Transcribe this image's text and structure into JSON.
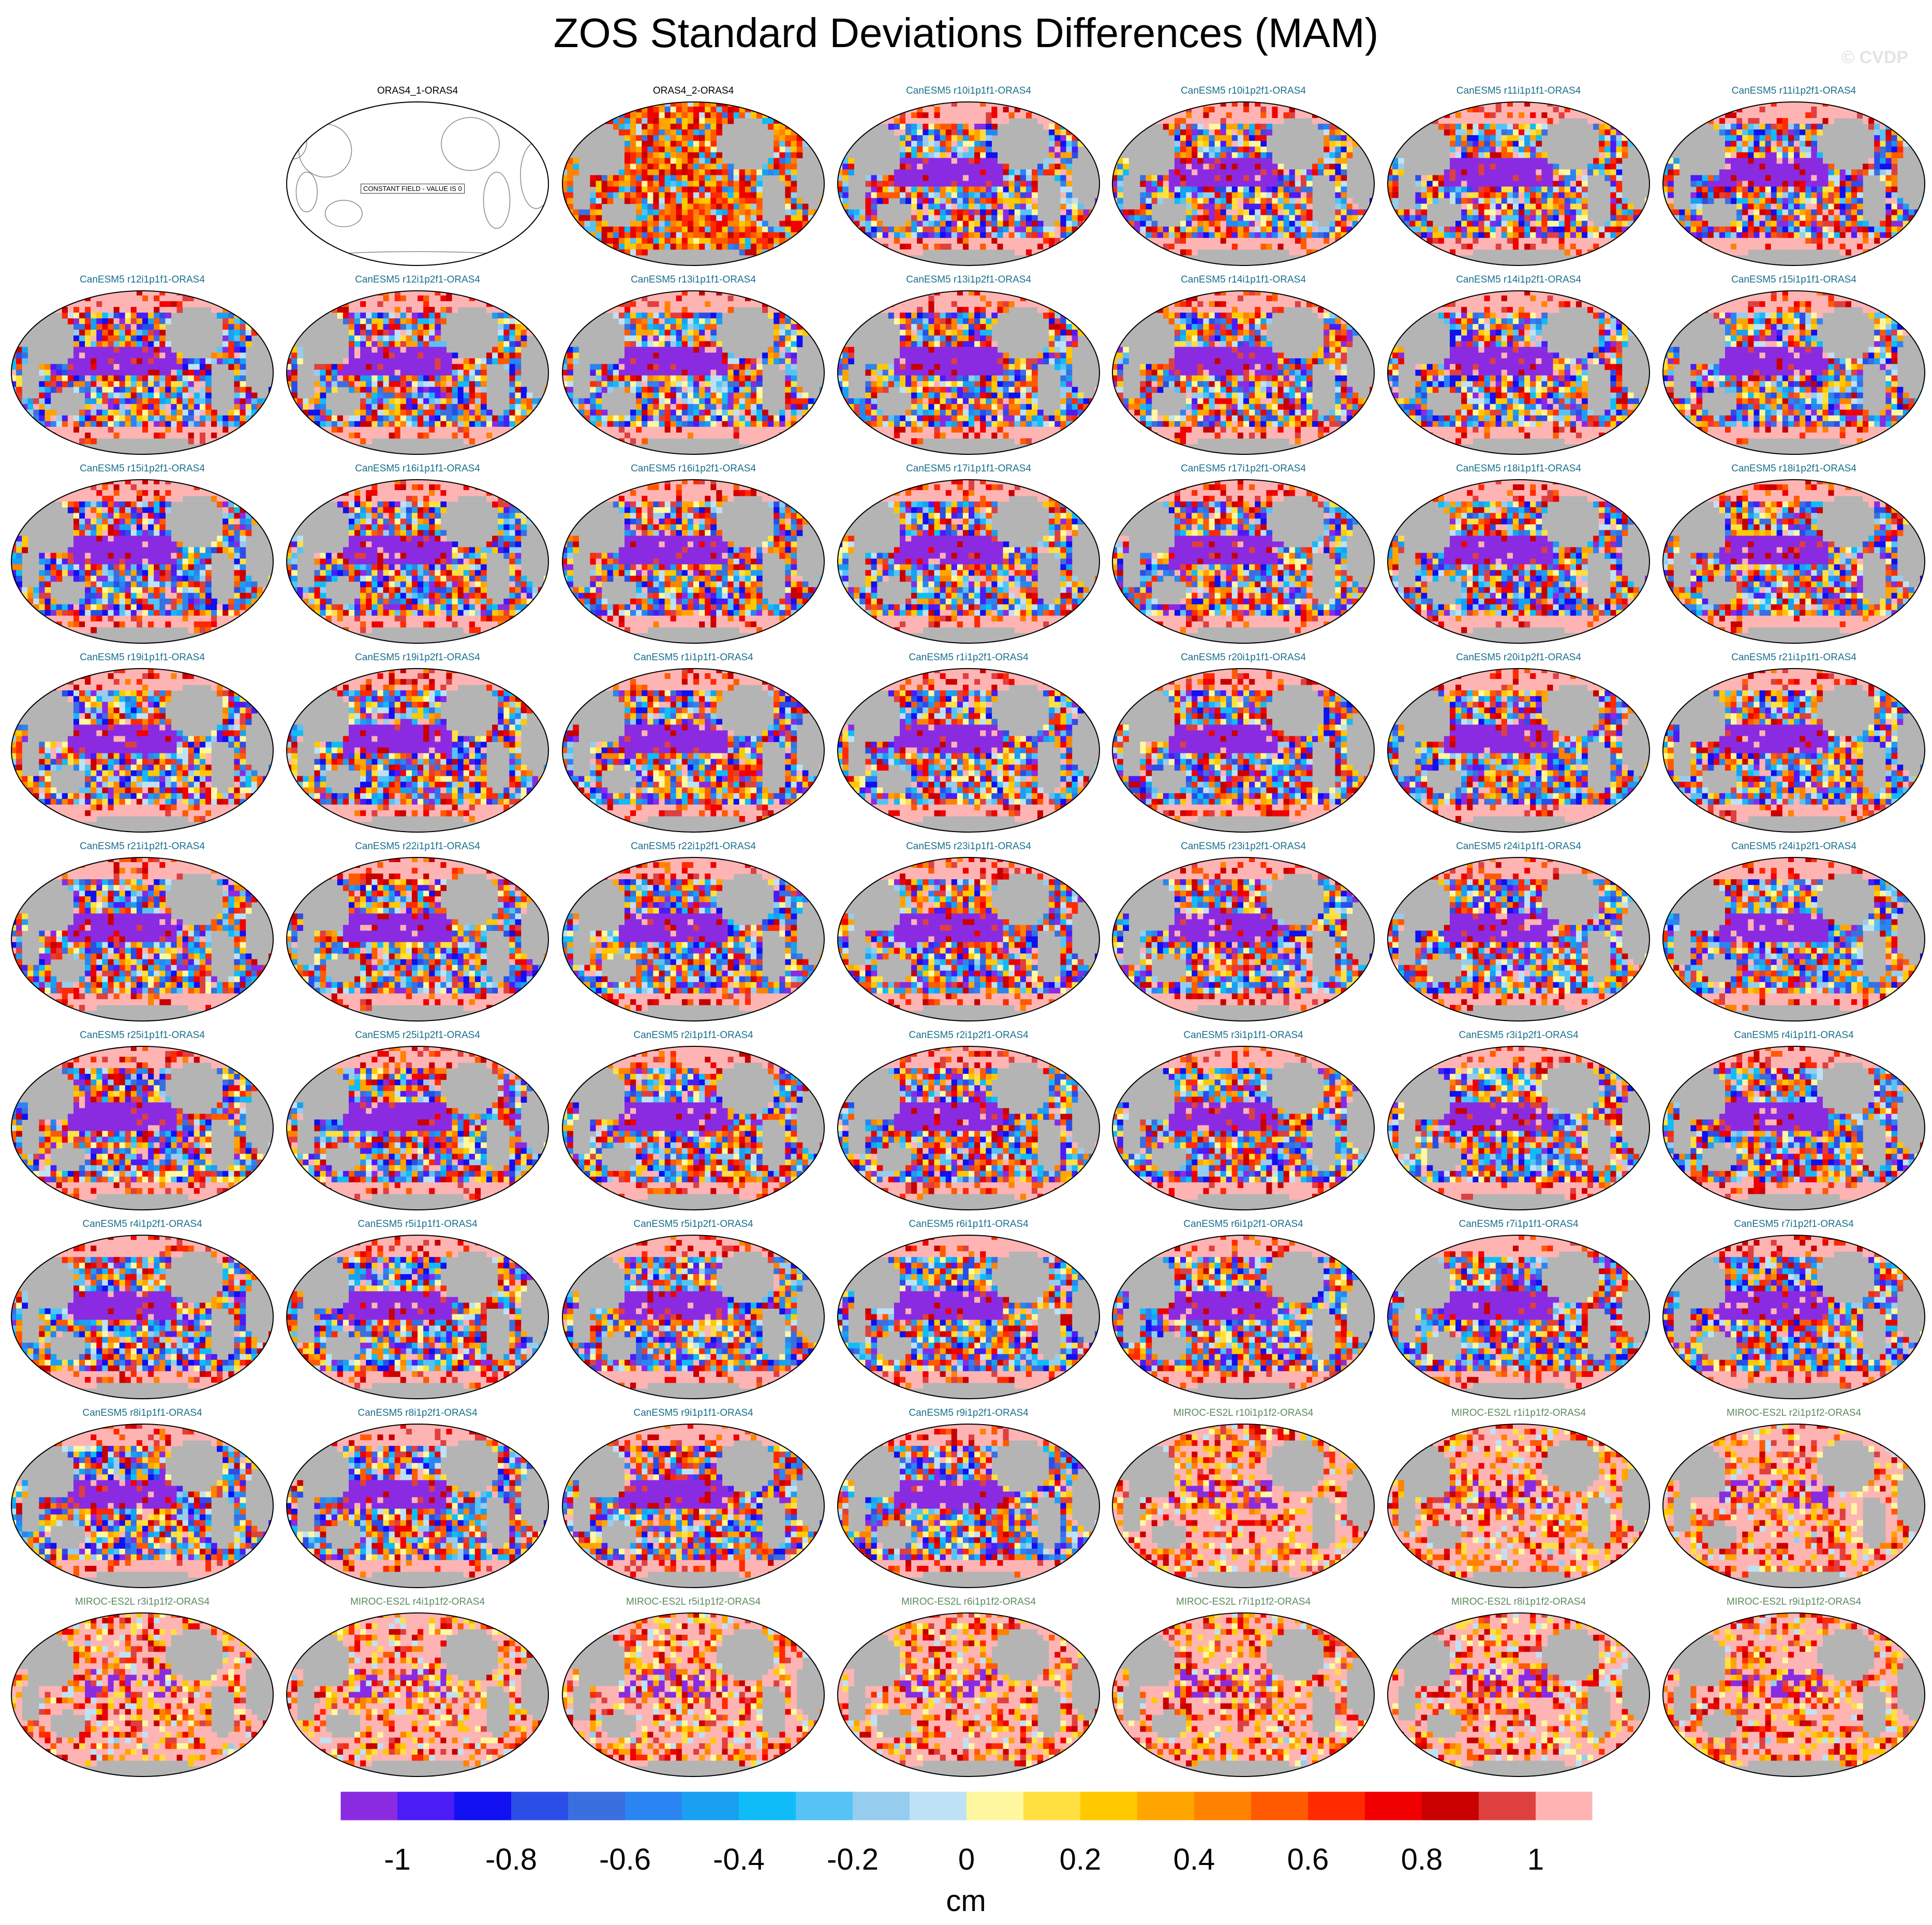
{
  "title": "ZOS Standard Deviations Differences (MAM)",
  "watermark": "© CVDP",
  "constant_field_note": "CONSTANT FIELD - VALUE IS 0",
  "colors": {
    "land": "#b4b4b4",
    "canesm_label": "#1a6f8c",
    "miroc_label": "#5c8a5c",
    "obs_label": "#000000",
    "palette": [
      "#8a2be2",
      "#4b1cf5",
      "#1010f0",
      "#2b4fe6",
      "#3a6fe0",
      "#2a85f2",
      "#1aa0f0",
      "#10bcf8",
      "#55c3f5",
      "#96cdef",
      "#bee2f5",
      "#fff8a0",
      "#ffe040",
      "#ffc800",
      "#ffa500",
      "#ff8200",
      "#ff5a00",
      "#ff2a00",
      "#f00000",
      "#c80000",
      "#de4040",
      "#ffb4b4"
    ]
  },
  "chart_data": {
    "type": "heatmap",
    "projection": "robinson",
    "unit": "cm",
    "colorbar_ticks": [
      "-1",
      "-0.8",
      "-0.6",
      "-0.4",
      "-0.2",
      "0",
      "0.2",
      "0.4",
      "0.6",
      "0.8",
      "1"
    ],
    "colorbar_levels": [
      -1.1,
      -1,
      -0.9,
      -0.8,
      -0.7,
      -0.6,
      -0.5,
      -0.4,
      -0.3,
      -0.2,
      -0.1,
      0,
      0.1,
      0.2,
      0.3,
      0.4,
      0.5,
      0.6,
      0.7,
      0.8,
      0.9,
      1,
      1.1
    ],
    "panels": [
      {
        "label": "ORAS4_1-ORAS4",
        "group": "obs",
        "constant": true
      },
      {
        "label": "ORAS4_2-ORAS4",
        "group": "obs"
      },
      {
        "label": "CanESM5 r10i1p1f1-ORAS4",
        "group": "canesm"
      },
      {
        "label": "CanESM5 r10i1p2f1-ORAS4",
        "group": "canesm"
      },
      {
        "label": "CanESM5 r11i1p1f1-ORAS4",
        "group": "canesm"
      },
      {
        "label": "CanESM5 r11i1p2f1-ORAS4",
        "group": "canesm"
      },
      {
        "label": "CanESM5 r12i1p1f1-ORAS4",
        "group": "canesm"
      },
      {
        "label": "CanESM5 r12i1p2f1-ORAS4",
        "group": "canesm"
      },
      {
        "label": "CanESM5 r13i1p1f1-ORAS4",
        "group": "canesm"
      },
      {
        "label": "CanESM5 r13i1p2f1-ORAS4",
        "group": "canesm"
      },
      {
        "label": "CanESM5 r14i1p1f1-ORAS4",
        "group": "canesm"
      },
      {
        "label": "CanESM5 r14i1p2f1-ORAS4",
        "group": "canesm"
      },
      {
        "label": "CanESM5 r15i1p1f1-ORAS4",
        "group": "canesm"
      },
      {
        "label": "CanESM5 r15i1p2f1-ORAS4",
        "group": "canesm"
      },
      {
        "label": "CanESM5 r16i1p1f1-ORAS4",
        "group": "canesm"
      },
      {
        "label": "CanESM5 r16i1p2f1-ORAS4",
        "group": "canesm"
      },
      {
        "label": "CanESM5 r17i1p1f1-ORAS4",
        "group": "canesm"
      },
      {
        "label": "CanESM5 r17i1p2f1-ORAS4",
        "group": "canesm"
      },
      {
        "label": "CanESM5 r18i1p1f1-ORAS4",
        "group": "canesm"
      },
      {
        "label": "CanESM5 r18i1p2f1-ORAS4",
        "group": "canesm"
      },
      {
        "label": "CanESM5 r19i1p1f1-ORAS4",
        "group": "canesm"
      },
      {
        "label": "CanESM5 r19i1p2f1-ORAS4",
        "group": "canesm"
      },
      {
        "label": "CanESM5 r1i1p1f1-ORAS4",
        "group": "canesm"
      },
      {
        "label": "CanESM5 r1i1p2f1-ORAS4",
        "group": "canesm"
      },
      {
        "label": "CanESM5 r20i1p1f1-ORAS4",
        "group": "canesm"
      },
      {
        "label": "CanESM5 r20i1p2f1-ORAS4",
        "group": "canesm"
      },
      {
        "label": "CanESM5 r21i1p1f1-ORAS4",
        "group": "canesm"
      },
      {
        "label": "CanESM5 r21i1p2f1-ORAS4",
        "group": "canesm"
      },
      {
        "label": "CanESM5 r22i1p1f1-ORAS4",
        "group": "canesm"
      },
      {
        "label": "CanESM5 r22i1p2f1-ORAS4",
        "group": "canesm"
      },
      {
        "label": "CanESM5 r23i1p1f1-ORAS4",
        "group": "canesm"
      },
      {
        "label": "CanESM5 r23i1p2f1-ORAS4",
        "group": "canesm"
      },
      {
        "label": "CanESM5 r24i1p1f1-ORAS4",
        "group": "canesm"
      },
      {
        "label": "CanESM5 r24i1p2f1-ORAS4",
        "group": "canesm"
      },
      {
        "label": "CanESM5 r25i1p1f1-ORAS4",
        "group": "canesm"
      },
      {
        "label": "CanESM5 r25i1p2f1-ORAS4",
        "group": "canesm"
      },
      {
        "label": "CanESM5 r2i1p1f1-ORAS4",
        "group": "canesm"
      },
      {
        "label": "CanESM5 r2i1p2f1-ORAS4",
        "group": "canesm"
      },
      {
        "label": "CanESM5 r3i1p1f1-ORAS4",
        "group": "canesm"
      },
      {
        "label": "CanESM5 r3i1p2f1-ORAS4",
        "group": "canesm"
      },
      {
        "label": "CanESM5 r4i1p1f1-ORAS4",
        "group": "canesm"
      },
      {
        "label": "CanESM5 r4i1p2f1-ORAS4",
        "group": "canesm"
      },
      {
        "label": "CanESM5 r5i1p1f1-ORAS4",
        "group": "canesm"
      },
      {
        "label": "CanESM5 r5i1p2f1-ORAS4",
        "group": "canesm"
      },
      {
        "label": "CanESM5 r6i1p1f1-ORAS4",
        "group": "canesm"
      },
      {
        "label": "CanESM5 r6i1p2f1-ORAS4",
        "group": "canesm"
      },
      {
        "label": "CanESM5 r7i1p1f1-ORAS4",
        "group": "canesm"
      },
      {
        "label": "CanESM5 r7i1p2f1-ORAS4",
        "group": "canesm"
      },
      {
        "label": "CanESM5 r8i1p1f1-ORAS4",
        "group": "canesm"
      },
      {
        "label": "CanESM5 r8i1p2f1-ORAS4",
        "group": "canesm"
      },
      {
        "label": "CanESM5 r9i1p1f1-ORAS4",
        "group": "canesm"
      },
      {
        "label": "CanESM5 r9i1p2f1-ORAS4",
        "group": "canesm"
      },
      {
        "label": "MIROC-ES2L r10i1p1f2-ORAS4",
        "group": "miroc"
      },
      {
        "label": "MIROC-ES2L r1i1p1f2-ORAS4",
        "group": "miroc"
      },
      {
        "label": "MIROC-ES2L r2i1p1f2-ORAS4",
        "group": "miroc"
      },
      {
        "label": "MIROC-ES2L r3i1p1f2-ORAS4",
        "group": "miroc"
      },
      {
        "label": "MIROC-ES2L r4i1p1f2-ORAS4",
        "group": "miroc"
      },
      {
        "label": "MIROC-ES2L r5i1p1f2-ORAS4",
        "group": "miroc"
      },
      {
        "label": "MIROC-ES2L r6i1p1f2-ORAS4",
        "group": "miroc"
      },
      {
        "label": "MIROC-ES2L r7i1p1f2-ORAS4",
        "group": "miroc"
      },
      {
        "label": "MIROC-ES2L r8i1p1f2-ORAS4",
        "group": "miroc"
      },
      {
        "label": "MIROC-ES2L r9i1p1f2-ORAS4",
        "group": "miroc"
      }
    ]
  }
}
